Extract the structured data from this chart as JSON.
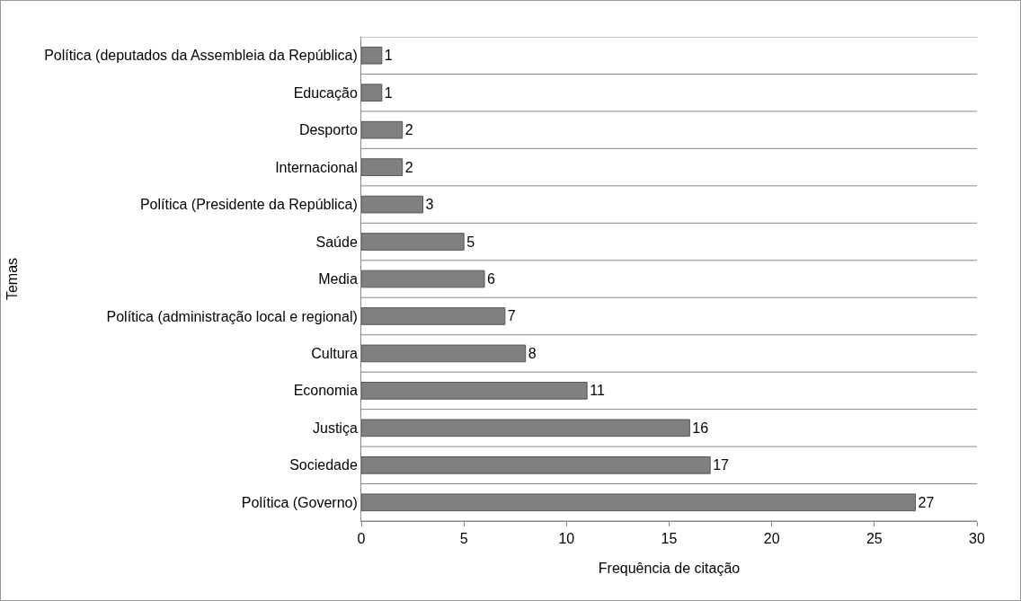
{
  "chart_data": {
    "type": "bar",
    "orientation": "horizontal",
    "xlabel": "Frequência de citação",
    "ylabel": "Temas",
    "categories": [
      "Política (deputados da Assembleia da República)",
      "Educação",
      "Desporto",
      "Internacional",
      "Política (Presidente da República)",
      "Saúde",
      "Media",
      "Política (administração local e regional)",
      "Cultura",
      "Economia",
      "Justiça",
      "Sociedade",
      "Política (Governo)"
    ],
    "values": [
      1,
      1,
      2,
      2,
      3,
      5,
      6,
      7,
      8,
      11,
      16,
      17,
      27
    ],
    "color": "#808080",
    "xlim": [
      0,
      30
    ],
    "xticks": [
      0,
      5,
      10,
      15,
      20,
      25,
      30
    ],
    "grid": "y",
    "data_labels": true
  }
}
